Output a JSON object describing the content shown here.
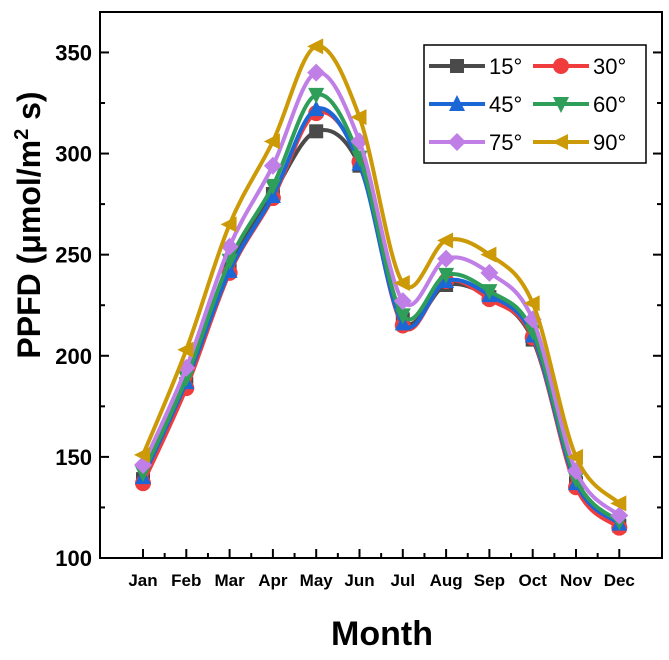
{
  "chart_data": {
    "type": "line",
    "xlabel": "Month",
    "ylabel": "PPFD (μmol/m",
    "ylabel_sup": "2",
    "ylabel_tail": " s)",
    "categories": [
      "Jan",
      "Feb",
      "Mar",
      "Apr",
      "May",
      "Jun",
      "Jul",
      "Aug",
      "Sep",
      "Oct",
      "Nov",
      "Dec"
    ],
    "ylim": [
      100,
      370
    ],
    "yticks": [
      100,
      150,
      200,
      250,
      300,
      350
    ],
    "grid": false,
    "legend_position": "top-right",
    "smooth": true,
    "series": [
      {
        "name": "15°",
        "color": "#4a4a4a",
        "marker": "square",
        "values": [
          139,
          186,
          243,
          280,
          311,
          294,
          218,
          235,
          229,
          208,
          137,
          116
        ]
      },
      {
        "name": "30°",
        "color": "#f03c3c",
        "marker": "circle",
        "values": [
          137,
          184,
          241,
          278,
          320,
          296,
          215,
          237,
          228,
          209,
          135,
          115
        ]
      },
      {
        "name": "45°",
        "color": "#1c67d6",
        "marker": "triangle-up",
        "values": [
          140,
          187,
          242,
          279,
          322,
          295,
          216,
          237,
          230,
          210,
          137,
          117
        ]
      },
      {
        "name": "60°",
        "color": "#2e9e58",
        "marker": "triangle-down",
        "values": [
          142,
          189,
          247,
          284,
          329,
          298,
          220,
          240,
          232,
          212,
          139,
          118
        ]
      },
      {
        "name": "75°",
        "color": "#c07fe6",
        "marker": "diamond",
        "values": [
          146,
          194,
          254,
          294,
          340,
          306,
          227,
          248,
          241,
          218,
          143,
          121
        ]
      },
      {
        "name": "90°",
        "color": "#cc9a06",
        "marker": "triangle-left",
        "values": [
          151,
          203,
          265,
          306,
          353,
          318,
          236,
          257,
          250,
          226,
          150,
          127
        ]
      }
    ]
  }
}
